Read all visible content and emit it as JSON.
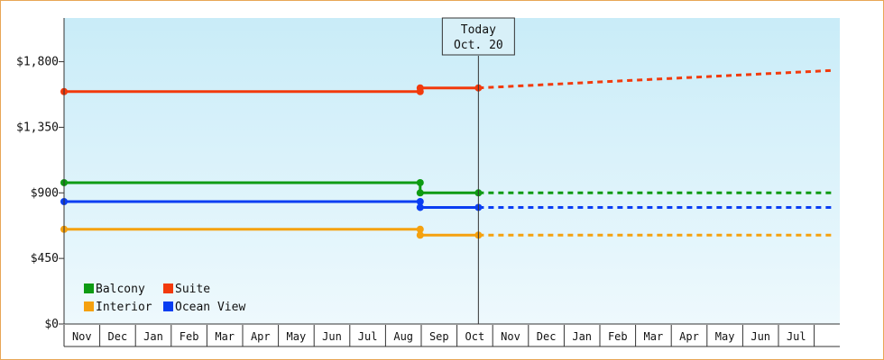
{
  "chart_data": {
    "type": "line",
    "title": "",
    "xlabel": "",
    "ylabel": "",
    "ylim": [
      0,
      2100
    ],
    "y_ticks": [
      "$0",
      "$450",
      "$900",
      "$1,350",
      "$1,800"
    ],
    "y_tick_values": [
      0,
      450,
      900,
      1350,
      1800
    ],
    "month_labels": [
      "Nov",
      "Dec",
      "Jan",
      "Feb",
      "Mar",
      "Apr",
      "May",
      "Jun",
      "Jul",
      "Aug",
      "Sep",
      "Oct",
      "Nov",
      "Dec",
      "Jan",
      "Feb",
      "Mar",
      "Apr",
      "May",
      "Jun",
      "Jul"
    ],
    "today": {
      "title": "Today",
      "date": "Oct. 20",
      "month_index": 11.6
    },
    "grid": false,
    "legend_position": "bottom-left",
    "background": {
      "top": "#c9ecf8",
      "bottom": "#eef9fd"
    },
    "series": [
      {
        "name": "Suite",
        "color": "#f23a0c",
        "solid": [
          [
            0,
            1595
          ],
          [
            9.97,
            1595
          ],
          [
            9.97,
            1620
          ],
          [
            11.6,
            1620
          ]
        ],
        "points": [
          [
            0,
            1595
          ],
          [
            9.97,
            1595
          ],
          [
            9.97,
            1620
          ],
          [
            11.6,
            1620
          ]
        ],
        "projected": [
          [
            11.6,
            1620
          ],
          [
            21.5,
            1740
          ]
        ]
      },
      {
        "name": "Balcony",
        "color": "#0e9b13",
        "solid": [
          [
            0,
            970
          ],
          [
            9.97,
            970
          ],
          [
            9.97,
            900
          ],
          [
            11.6,
            900
          ]
        ],
        "points": [
          [
            0,
            970
          ],
          [
            9.97,
            970
          ],
          [
            9.97,
            900
          ],
          [
            11.6,
            900
          ]
        ],
        "projected": [
          [
            11.6,
            900
          ],
          [
            21.5,
            900
          ]
        ]
      },
      {
        "name": "Ocean View",
        "color": "#0a3ef2",
        "solid": [
          [
            0,
            840
          ],
          [
            9.97,
            840
          ],
          [
            9.97,
            800
          ],
          [
            11.6,
            800
          ]
        ],
        "points": [
          [
            0,
            840
          ],
          [
            9.97,
            840
          ],
          [
            9.97,
            800
          ],
          [
            11.6,
            800
          ]
        ],
        "projected": [
          [
            11.6,
            800
          ],
          [
            21.5,
            800
          ]
        ]
      },
      {
        "name": "Interior",
        "color": "#f5a10f",
        "solid": [
          [
            0,
            650
          ],
          [
            9.97,
            650
          ],
          [
            9.97,
            610
          ],
          [
            11.6,
            610
          ]
        ],
        "points": [
          [
            0,
            650
          ],
          [
            9.97,
            650
          ],
          [
            9.97,
            610
          ],
          [
            11.6,
            610
          ]
        ],
        "projected": [
          [
            11.6,
            610
          ],
          [
            21.5,
            610
          ]
        ]
      }
    ],
    "legend": [
      {
        "name": "Balcony",
        "color": "#0e9b13"
      },
      {
        "name": "Suite",
        "color": "#f23a0c"
      },
      {
        "name": "Interior",
        "color": "#f5a10f"
      },
      {
        "name": "Ocean View",
        "color": "#0a3ef2"
      }
    ]
  }
}
